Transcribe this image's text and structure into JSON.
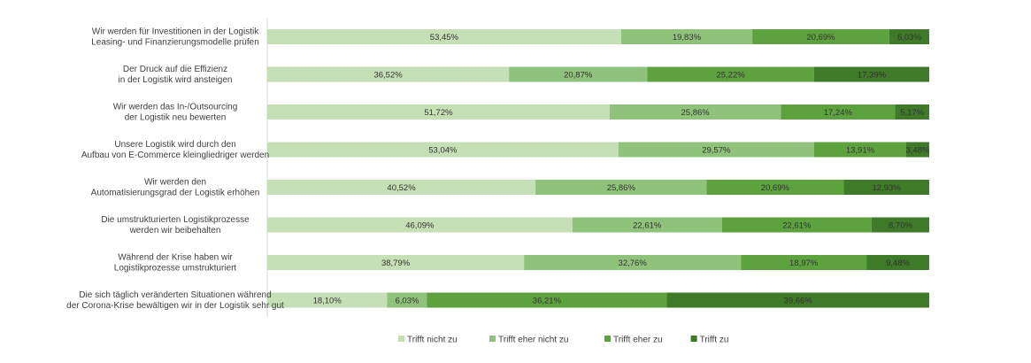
{
  "chart_data": {
    "type": "bar",
    "orientation": "horizontal",
    "stacked": "100%",
    "title": "",
    "categories": [
      [
        "Wir werden für Investitionen in der Logistik",
        "Leasing- und Finanzierungsmodelle prüfen"
      ],
      [
        "Der Druck auf die Effizienz",
        "in der Logistik wird ansteigen"
      ],
      [
        "Wir werden das In-/Outsourcing",
        "der Logistik neu bewerten"
      ],
      [
        "Unsere Logistik wird durch den",
        "Aufbau von E-Commerce kleingliedriger werden"
      ],
      [
        "Wir werden den",
        "Automatisierungsgrad der Logistik erhöhen"
      ],
      [
        "Die umstrukturierten Logistikprozesse",
        "werden wir beibehalten"
      ],
      [
        "Während der Krise haben wir",
        "Logistikprozesse umstrukturiert"
      ],
      [
        "Die sich täglich veränderten Situationen während",
        "der Corona-Krise bewältigen wir in der Logistik sehr gut"
      ]
    ],
    "series": [
      {
        "name": "Trifft nicht zu",
        "color": "#c5dfb6",
        "values": [
          53.45,
          36.52,
          51.72,
          53.04,
          40.52,
          46.09,
          38.79,
          18.1
        ],
        "labels": [
          "53,45%",
          "36,52%",
          "51,72%",
          "53,04%",
          "40,52%",
          "46,09%",
          "38,79%",
          "18,10%"
        ]
      },
      {
        "name": "Trifft eher nicht zu",
        "color": "#8fc27a",
        "values": [
          19.83,
          20.87,
          25.86,
          29.57,
          25.86,
          22.61,
          32.76,
          6.03
        ],
        "labels": [
          "19,83%",
          "20,87%",
          "25,86%",
          "29,57%",
          "25,86%",
          "22,61%",
          "32,76%",
          "6,03%"
        ]
      },
      {
        "name": "Trifft eher zu",
        "color": "#5ea23f",
        "values": [
          20.69,
          25.22,
          17.24,
          13.91,
          20.69,
          22.61,
          18.97,
          36.21
        ],
        "labels": [
          "20,69%",
          "25,22%",
          "17,24%",
          "13,91%",
          "20,69%",
          "22,61%",
          "18,97%",
          "36,21%"
        ]
      },
      {
        "name": "Trifft zu",
        "color": "#3e7a28",
        "values": [
          6.03,
          17.39,
          5.17,
          3.48,
          12.93,
          8.7,
          9.48,
          39.66
        ],
        "labels": [
          "6,03%",
          "17,39%",
          "5,17%",
          "3,48%",
          "12,93%",
          "8,70%",
          "9,48%",
          "39,66%"
        ]
      }
    ],
    "xlim": [
      0,
      100
    ],
    "grid": false,
    "legend_position": "bottom"
  }
}
